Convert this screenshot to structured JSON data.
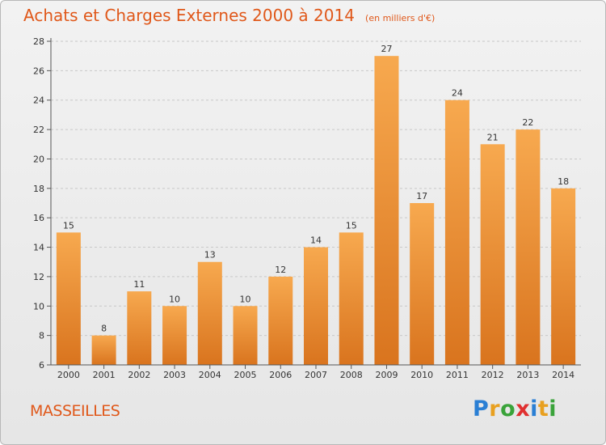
{
  "title": "Achats et Charges Externes 2000 à 2014",
  "unit": "(en milliers d'€)",
  "commune": "MASSEILLES",
  "logo": {
    "letters": [
      "P",
      "r",
      "o",
      "x",
      "i",
      "t",
      "i"
    ],
    "colors": [
      "#2a7fd4",
      "#e8a020",
      "#3aa33a",
      "#e03030",
      "#2a7fd4",
      "#e8a020",
      "#3aa33a"
    ]
  },
  "colors": {
    "bar_top": "#f7a94f",
    "bar_bottom": "#d9741e",
    "title": "#e0581a",
    "grid": "#c8c8c8"
  },
  "chart_data": {
    "type": "bar",
    "title": "Achats et Charges Externes 2000 à 2014",
    "categories": [
      "2000",
      "2001",
      "2002",
      "2003",
      "2004",
      "2005",
      "2006",
      "2007",
      "2008",
      "2009",
      "2010",
      "2011",
      "2012",
      "2013",
      "2014"
    ],
    "values": [
      15,
      8,
      11,
      10,
      13,
      10,
      12,
      14,
      15,
      27,
      17,
      24,
      21,
      22,
      18
    ],
    "ylim": [
      6,
      28
    ],
    "yticks": [
      6,
      8,
      10,
      12,
      14,
      16,
      18,
      20,
      22,
      24,
      26,
      28
    ],
    "xlabel": "",
    "ylabel": ""
  }
}
